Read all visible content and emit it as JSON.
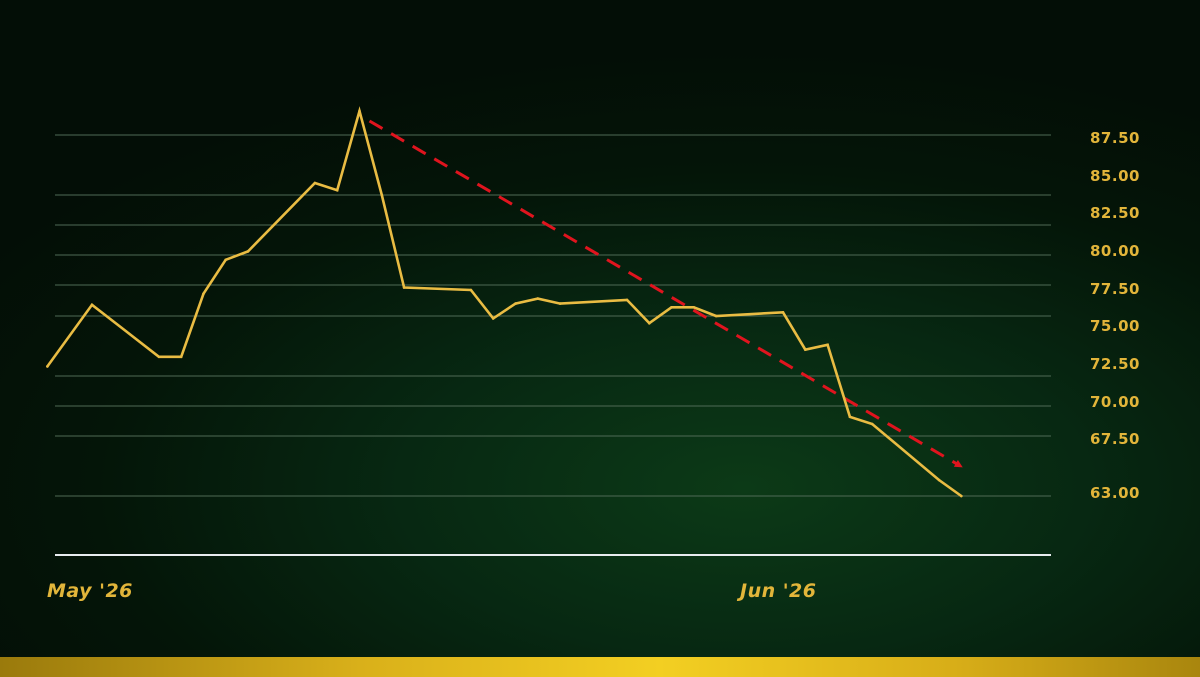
{
  "colors": {
    "background": "#041207",
    "line": "#e9bc43",
    "trend": "#e0141e",
    "grid": "#4f6a55",
    "baseline": "#e8ecef",
    "label": "#e2b53a",
    "bottom_bar": "#f3cf22"
  },
  "chart_data": {
    "type": "line",
    "title": "",
    "xlabel": "",
    "ylabel": "",
    "y_axis_position": "right",
    "grid": true,
    "yticks": [
      63.0,
      67.5,
      70.0,
      72.5,
      75.0,
      77.5,
      80.0,
      82.5,
      85.0,
      87.5
    ],
    "ytick_labels": [
      "63.00",
      "67.50",
      "70.00",
      "72.50",
      "75.00",
      "77.50",
      "80.00",
      "82.50",
      "85.00",
      "87.50"
    ],
    "xtick_labels": [
      {
        "label": "May '26",
        "date": "2026-05-01"
      },
      {
        "label": "Jun '26",
        "date": "2026-06-01"
      }
    ],
    "series": [
      {
        "points": [
          {
            "x": "2026-04-29",
            "y": 72.9
          },
          {
            "x": "2026-05-01",
            "y": 75.9
          },
          {
            "x": "2026-05-04",
            "y": 73.3
          },
          {
            "x": "2026-05-05",
            "y": 73.3
          },
          {
            "x": "2026-05-06",
            "y": 76.8
          },
          {
            "x": "2026-05-07",
            "y": 79.6
          },
          {
            "x": "2026-05-08",
            "y": 80.3
          },
          {
            "x": "2026-05-11",
            "y": 85.5
          },
          {
            "x": "2026-05-12",
            "y": 85.2
          },
          {
            "x": "2026-05-13",
            "y": 88.5
          },
          {
            "x": "2026-05-14",
            "y": 85.0
          },
          {
            "x": "2026-05-15",
            "y": 77.3
          },
          {
            "x": "2026-05-18",
            "y": 77.1
          },
          {
            "x": "2026-05-19",
            "y": 74.9
          },
          {
            "x": "2026-05-20",
            "y": 76.0
          },
          {
            "x": "2026-05-21",
            "y": 76.4
          },
          {
            "x": "2026-05-22",
            "y": 76.0
          },
          {
            "x": "2026-05-25",
            "y": 76.3
          },
          {
            "x": "2026-05-26",
            "y": 74.7
          },
          {
            "x": "2026-05-27",
            "y": 75.7
          },
          {
            "x": "2026-05-28",
            "y": 75.7
          },
          {
            "x": "2026-05-29",
            "y": 75.0
          },
          {
            "x": "2026-06-01",
            "y": 75.3
          },
          {
            "x": "2026-06-02",
            "y": 73.6
          },
          {
            "x": "2026-06-03",
            "y": 73.8
          },
          {
            "x": "2026-06-04",
            "y": 69.1
          },
          {
            "x": "2026-06-05",
            "y": 68.5
          },
          {
            "x": "2026-06-08",
            "y": 64.2
          },
          {
            "x": "2026-06-09",
            "y": 63.0
          }
        ]
      }
    ],
    "annotations": [
      {
        "type": "trend-arrow",
        "style": "dashed",
        "color": "#e0141e",
        "from": {
          "x": "2026-05-13",
          "y": 88.0
        },
        "to": {
          "x": "2026-06-09",
          "y": 65.0
        }
      }
    ]
  }
}
